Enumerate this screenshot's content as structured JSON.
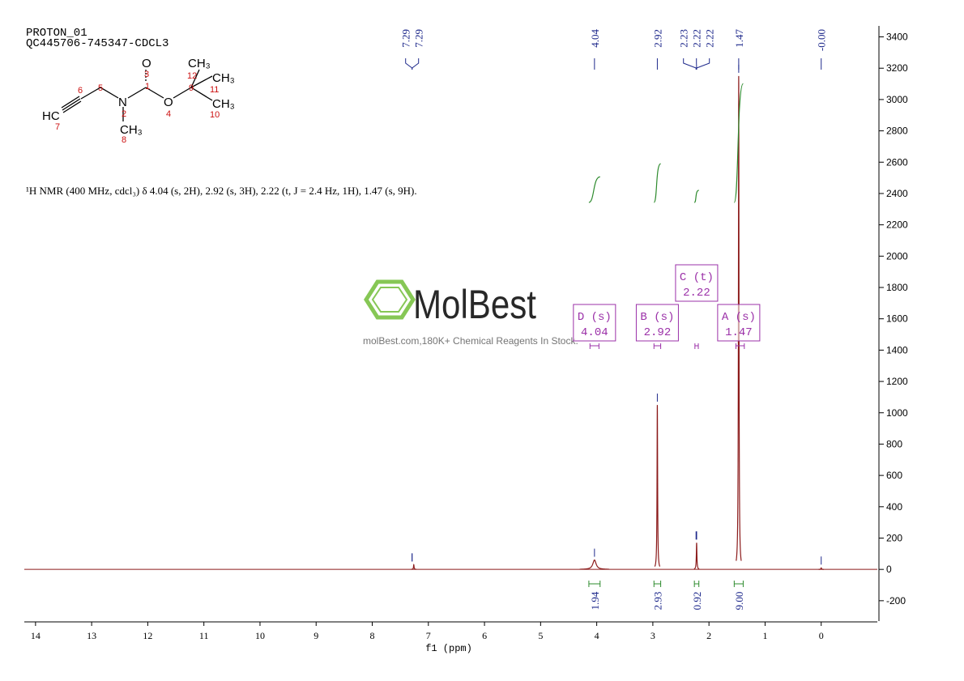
{
  "header": {
    "title": "PROTON_01",
    "sample": "QC445706-745347-CDCL3",
    "description": "¹H NMR (400 MHz, cdcl₃) δ 4.04 (s, 2H), 2.92 (s, 3H), 2.22 (t, J = 2.4 Hz, 1H), 1.47 (s, 9H)."
  },
  "structure": {
    "atoms": [
      "HC",
      "N",
      "O",
      "O",
      "CH₃",
      "CH₃",
      "CH₃",
      "CH₃"
    ],
    "numbers": [
      "7",
      "6",
      "5",
      "2",
      "8",
      "1",
      "3",
      "4",
      "9",
      "12",
      "11",
      "10"
    ]
  },
  "watermark": {
    "brand": "MolBest",
    "tagline": "molBest.com,180K+ Chemical Reagents In Stock."
  },
  "chart_data": {
    "type": "nmr",
    "x_label": "f1 (ppm)",
    "xlim": [
      14.2,
      -1
    ],
    "xticks": [
      14,
      13,
      12,
      11,
      10,
      9,
      8,
      7,
      6,
      5,
      4,
      3,
      2,
      1,
      0
    ],
    "ylim": [
      -330,
      3470
    ],
    "yticks": [
      -200,
      0,
      200,
      400,
      600,
      800,
      1000,
      1200,
      1400,
      1600,
      1800,
      2000,
      2200,
      2400,
      2600,
      2800,
      3000,
      3200,
      3400
    ],
    "color": "#8b1a1a",
    "peaks": {
      "x": [
        7.26,
        4.04,
        2.92,
        2.22,
        1.47,
        0
      ],
      "values": [
        30,
        60,
        1050,
        170,
        3150,
        10
      ]
    },
    "peak_picks": [
      7.29,
      7.29,
      4.04,
      2.92,
      2.23,
      2.22,
      2.22,
      1.47,
      {
        "value": 0,
        "label": "-0.00"
      }
    ],
    "integrals": {
      "values": [
        1.94,
        2.93,
        0.92,
        9
      ],
      "value_labels": [
        "1.94",
        "2.93",
        "0.92",
        "9.00"
      ],
      "ranges": [
        [
          4.14,
          3.94
        ],
        [
          2.98,
          2.86
        ],
        [
          2.26,
          2.18
        ],
        [
          1.55,
          1.39
        ]
      ]
    },
    "multiplets": {
      "names": [
        "D (s)",
        "B (s)",
        "C (t)",
        "A (s)"
      ],
      "shifts": [
        4.04,
        2.92,
        2.22,
        1.47
      ],
      "ranges": [
        [
          4.12,
          3.96
        ],
        [
          2.98,
          2.86
        ],
        [
          2.25,
          2.19
        ],
        [
          1.52,
          1.37
        ]
      ]
    }
  }
}
